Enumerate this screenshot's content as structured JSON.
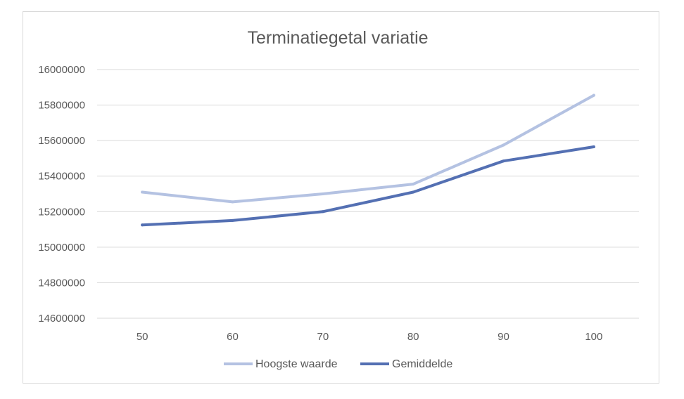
{
  "chart_data": {
    "type": "line",
    "title": "Terminatiegetal variatie",
    "xlabel": "",
    "ylabel": "",
    "categories": [
      "50",
      "60",
      "70",
      "80",
      "90",
      "100"
    ],
    "y_ticks": [
      "14600000",
      "14800000",
      "15000000",
      "15200000",
      "15400000",
      "15600000",
      "15800000",
      "16000000"
    ],
    "ylim": [
      14600000,
      16000000
    ],
    "grid": true,
    "legend_position": "bottom",
    "series": [
      {
        "name": "Hoogste waarde",
        "color": "#b4c2e2",
        "values": [
          15310000,
          15255000,
          15300000,
          15355000,
          15575000,
          15855000
        ]
      },
      {
        "name": "Gemiddelde",
        "color": "#5470b3",
        "values": [
          15125000,
          15150000,
          15200000,
          15310000,
          15485000,
          15565000
        ]
      }
    ]
  }
}
